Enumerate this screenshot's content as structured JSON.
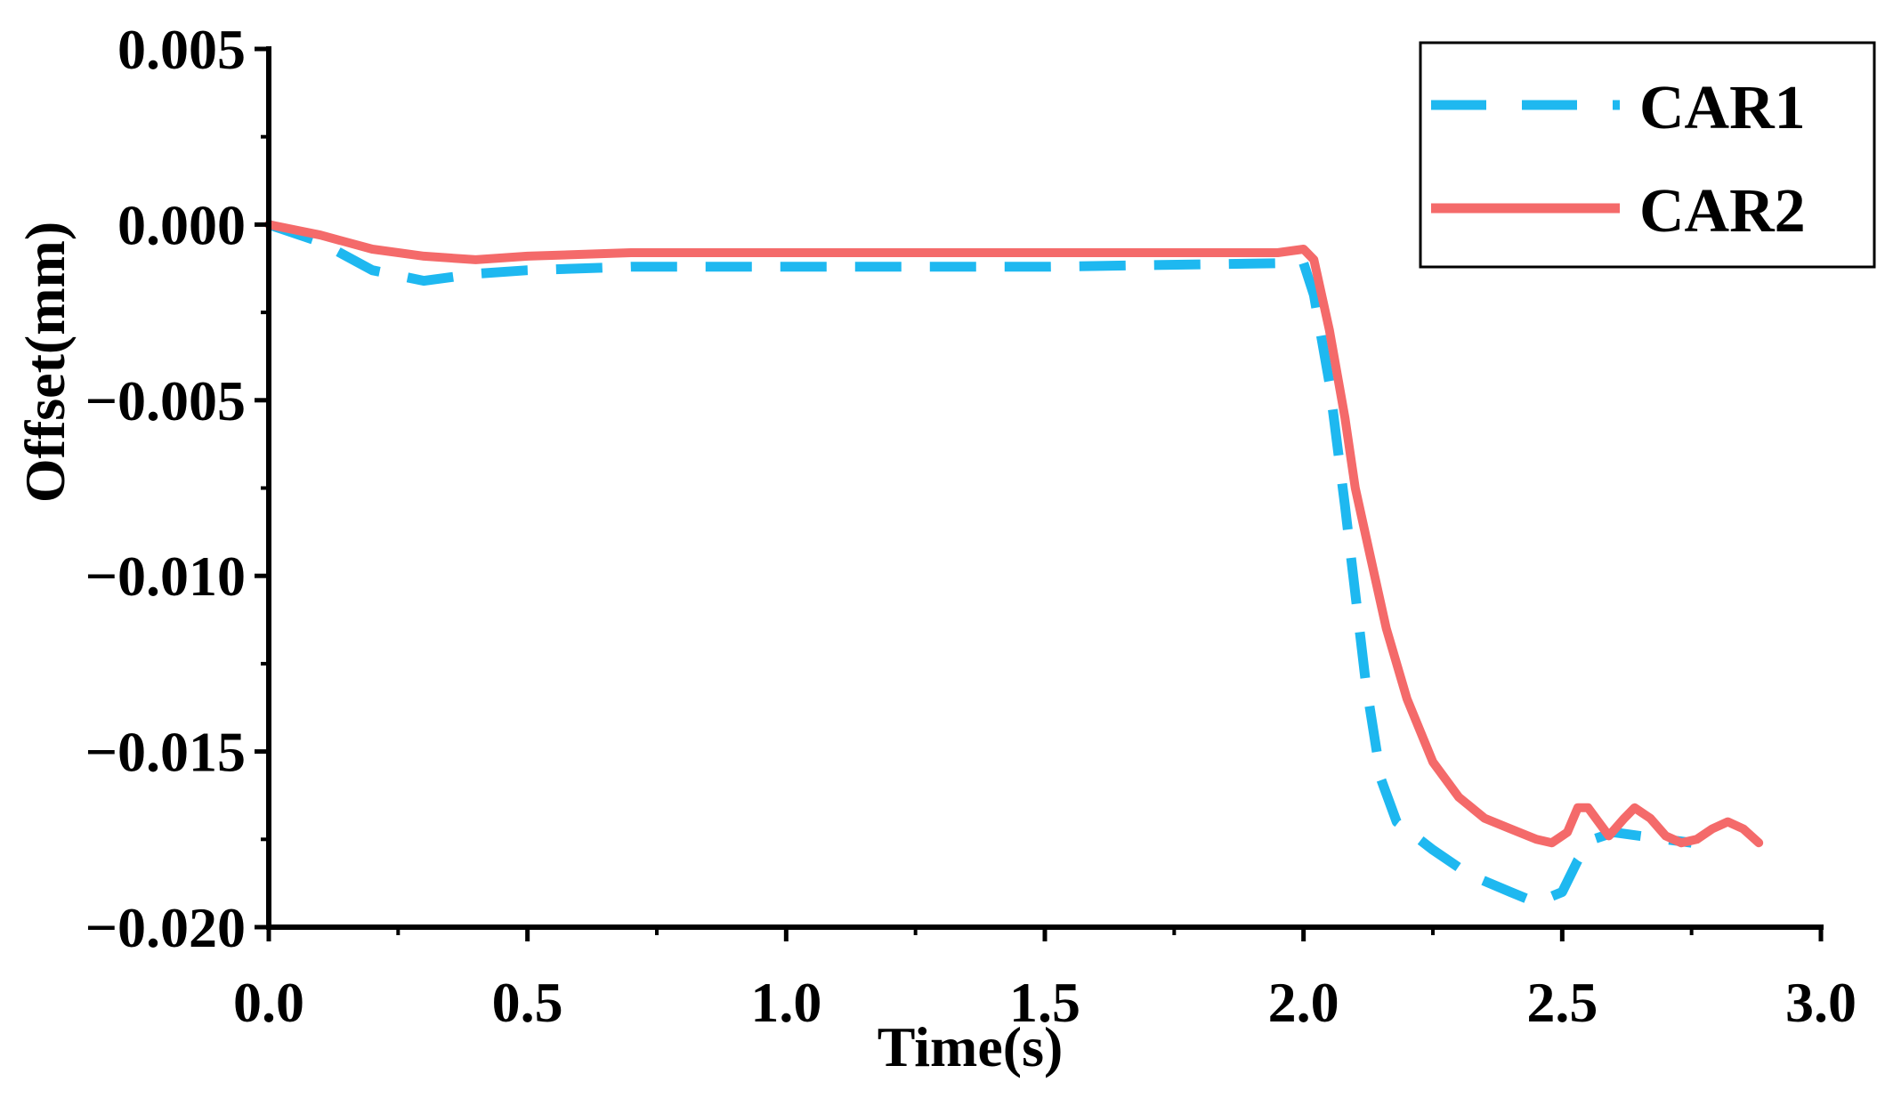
{
  "chart_data": {
    "type": "line",
    "title": "",
    "xlabel": "Time(s)",
    "ylabel": "Offset(mm)",
    "xlim": [
      0.0,
      3.0
    ],
    "ylim": [
      -0.02,
      0.005
    ],
    "x_ticks": [
      0.0,
      0.5,
      1.0,
      1.5,
      2.0,
      2.5,
      3.0
    ],
    "x_tick_labels": [
      "0.0",
      "0.5",
      "1.0",
      "1.5",
      "2.0",
      "2.5",
      "3.0"
    ],
    "y_ticks": [
      0.005,
      0.0,
      -0.005,
      -0.01,
      -0.015,
      -0.02
    ],
    "y_tick_labels": [
      "0.005",
      "0.000",
      "−0.005",
      "−0.010",
      "−0.015",
      "−0.020"
    ],
    "grid": false,
    "legend_position": "top-right",
    "series": [
      {
        "name": "CAR1",
        "color": "#1EB8F0",
        "style": "dashed",
        "points": [
          [
            0.0,
            0.0
          ],
          [
            0.1,
            -0.0005
          ],
          [
            0.2,
            -0.0013
          ],
          [
            0.3,
            -0.0016
          ],
          [
            0.4,
            -0.0014
          ],
          [
            0.5,
            -0.0013
          ],
          [
            0.7,
            -0.0012
          ],
          [
            1.0,
            -0.0012
          ],
          [
            1.5,
            -0.0012
          ],
          [
            1.95,
            -0.0011
          ],
          [
            2.0,
            -0.0011
          ],
          [
            2.02,
            -0.002
          ],
          [
            2.05,
            -0.0045
          ],
          [
            2.08,
            -0.008
          ],
          [
            2.1,
            -0.0105
          ],
          [
            2.12,
            -0.013
          ],
          [
            2.15,
            -0.0158
          ],
          [
            2.18,
            -0.017
          ],
          [
            2.25,
            -0.0178
          ],
          [
            2.32,
            -0.0185
          ],
          [
            2.4,
            -0.019
          ],
          [
            2.45,
            -0.0193
          ],
          [
            2.5,
            -0.019
          ],
          [
            2.53,
            -0.0181
          ],
          [
            2.56,
            -0.0175
          ],
          [
            2.6,
            -0.0173
          ],
          [
            2.65,
            -0.0174
          ],
          [
            2.7,
            -0.0175
          ],
          [
            2.75,
            -0.0176
          ]
        ]
      },
      {
        "name": "CAR2",
        "color": "#F46A6A",
        "style": "solid",
        "points": [
          [
            0.0,
            0.0
          ],
          [
            0.1,
            -0.0003
          ],
          [
            0.2,
            -0.0007
          ],
          [
            0.3,
            -0.0009
          ],
          [
            0.4,
            -0.001
          ],
          [
            0.5,
            -0.0009
          ],
          [
            0.7,
            -0.0008
          ],
          [
            1.0,
            -0.0008
          ],
          [
            1.5,
            -0.0008
          ],
          [
            1.95,
            -0.0008
          ],
          [
            2.0,
            -0.0007
          ],
          [
            2.02,
            -0.001
          ],
          [
            2.05,
            -0.003
          ],
          [
            2.08,
            -0.0055
          ],
          [
            2.1,
            -0.0075
          ],
          [
            2.13,
            -0.0095
          ],
          [
            2.16,
            -0.0115
          ],
          [
            2.2,
            -0.0135
          ],
          [
            2.25,
            -0.0153
          ],
          [
            2.3,
            -0.0163
          ],
          [
            2.35,
            -0.0169
          ],
          [
            2.4,
            -0.0172
          ],
          [
            2.45,
            -0.0175
          ],
          [
            2.48,
            -0.0176
          ],
          [
            2.51,
            -0.0173
          ],
          [
            2.53,
            -0.0166
          ],
          [
            2.55,
            -0.0166
          ],
          [
            2.57,
            -0.017
          ],
          [
            2.59,
            -0.0174
          ],
          [
            2.62,
            -0.0169
          ],
          [
            2.64,
            -0.0166
          ],
          [
            2.67,
            -0.0169
          ],
          [
            2.7,
            -0.0174
          ],
          [
            2.73,
            -0.0176
          ],
          [
            2.76,
            -0.0175
          ],
          [
            2.79,
            -0.0172
          ],
          [
            2.82,
            -0.017
          ],
          [
            2.85,
            -0.0172
          ],
          [
            2.88,
            -0.0176
          ]
        ]
      }
    ]
  }
}
